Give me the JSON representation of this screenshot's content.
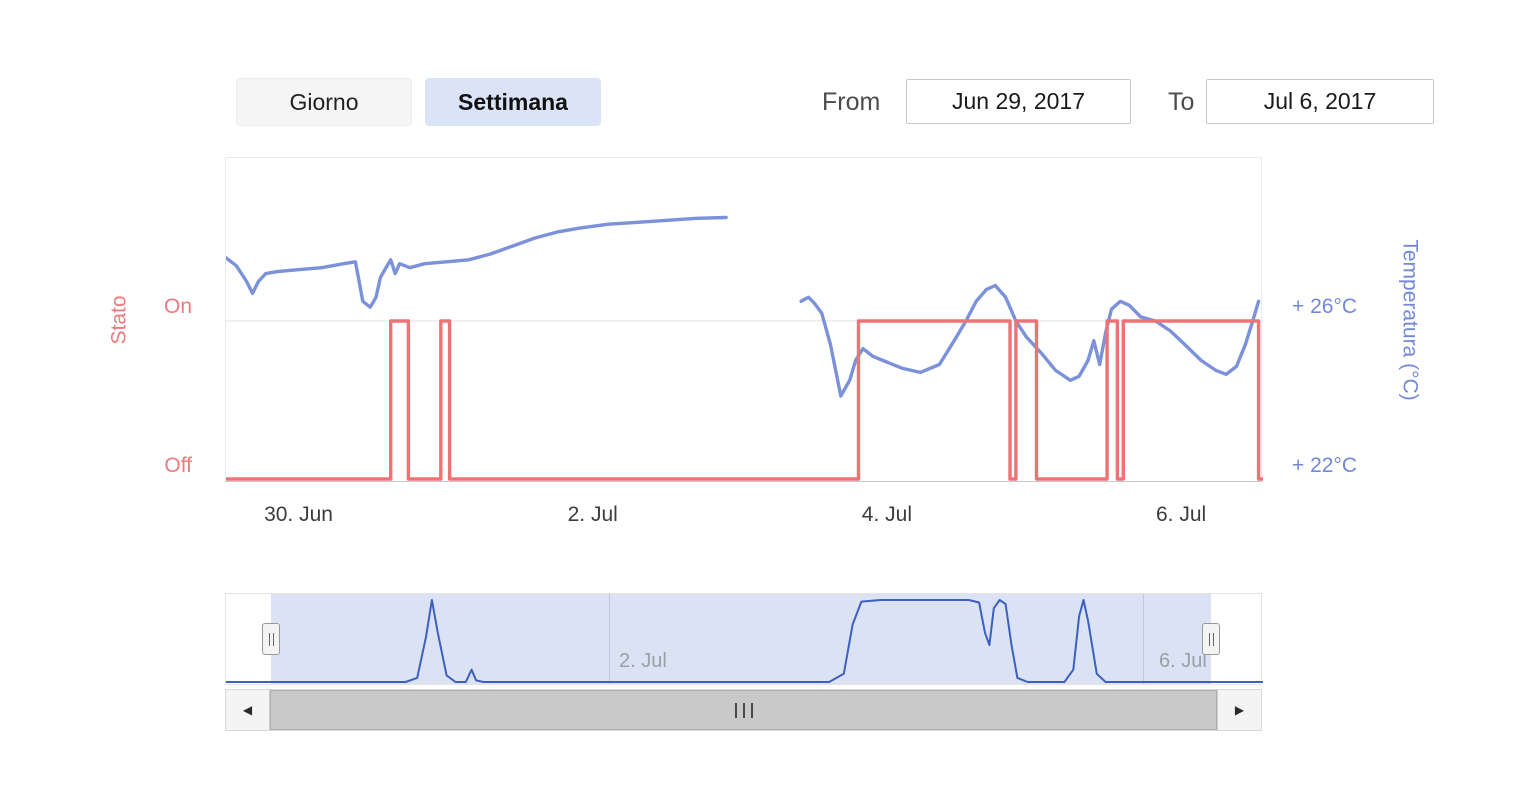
{
  "controls": {
    "view_buttons": [
      {
        "label": "Giorno",
        "active": false
      },
      {
        "label": "Settimana",
        "active": true
      }
    ],
    "from_label": "From",
    "from_value": "Jun 29, 2017",
    "to_label": "To",
    "to_value": "Jul 6, 2017"
  },
  "icons": {
    "scroll_left_icon": "◀",
    "scroll_right_icon": "▶"
  },
  "chart_data": {
    "type": "line",
    "title": "",
    "x_axis": {
      "unit": "days from window start (Jun 29, 2017 ~12:00)",
      "range": [
        0,
        7.05
      ],
      "ticks": [
        {
          "pos": 0.5,
          "label": "30. Jun"
        },
        {
          "pos": 2.5,
          "label": "2. Jul"
        },
        {
          "pos": 4.5,
          "label": "4. Jul"
        },
        {
          "pos": 6.5,
          "label": "6. Jul"
        }
      ]
    },
    "y_axis_left": {
      "title": "Stato",
      "color": "#ee7a7e",
      "tick_labels": [
        "On",
        "Off"
      ]
    },
    "y_axis_right": {
      "title": "Temperatura (°C)",
      "color": "#7488d8",
      "tick_labels": [
        "+ 26°C",
        "+ 22°C"
      ],
      "tick_values_c": [
        26,
        22
      ],
      "range_c": [
        21.9,
        30.1
      ]
    },
    "series": [
      {
        "name": "Temperatura",
        "unit": "°C",
        "color": "#7b91da",
        "segments": [
          [
            [
              0.0,
              27.6
            ],
            [
              0.07,
              27.4
            ],
            [
              0.14,
              27.0
            ],
            [
              0.18,
              26.7
            ],
            [
              0.22,
              27.0
            ],
            [
              0.27,
              27.2
            ],
            [
              0.35,
              27.25
            ],
            [
              0.5,
              27.3
            ],
            [
              0.65,
              27.35
            ],
            [
              0.8,
              27.45
            ],
            [
              0.88,
              27.5
            ],
            [
              0.9,
              27.1
            ],
            [
              0.93,
              26.5
            ],
            [
              0.98,
              26.35
            ],
            [
              1.02,
              26.6
            ],
            [
              1.05,
              27.1
            ],
            [
              1.08,
              27.3
            ],
            [
              1.12,
              27.55
            ],
            [
              1.15,
              27.2
            ],
            [
              1.18,
              27.45
            ],
            [
              1.25,
              27.35
            ],
            [
              1.35,
              27.45
            ],
            [
              1.5,
              27.5
            ],
            [
              1.65,
              27.55
            ],
            [
              1.8,
              27.7
            ],
            [
              1.95,
              27.9
            ],
            [
              2.1,
              28.1
            ],
            [
              2.25,
              28.25
            ],
            [
              2.4,
              28.35
            ],
            [
              2.6,
              28.45
            ],
            [
              2.8,
              28.5
            ],
            [
              3.0,
              28.55
            ],
            [
              3.2,
              28.6
            ],
            [
              3.4,
              28.62
            ]
          ],
          [
            [
              3.91,
              26.5
            ],
            [
              3.96,
              26.6
            ],
            [
              4.0,
              26.45
            ],
            [
              4.05,
              26.2
            ],
            [
              4.11,
              25.4
            ],
            [
              4.18,
              24.1
            ],
            [
              4.24,
              24.5
            ],
            [
              4.28,
              25.0
            ],
            [
              4.33,
              25.3
            ],
            [
              4.4,
              25.1
            ],
            [
              4.5,
              24.95
            ],
            [
              4.6,
              24.8
            ],
            [
              4.72,
              24.7
            ],
            [
              4.85,
              24.9
            ],
            [
              4.95,
              25.5
            ],
            [
              5.03,
              26.0
            ],
            [
              5.1,
              26.5
            ],
            [
              5.17,
              26.8
            ],
            [
              5.23,
              26.9
            ],
            [
              5.3,
              26.6
            ],
            [
              5.37,
              26.0
            ],
            [
              5.44,
              25.6
            ],
            [
              5.54,
              25.2
            ],
            [
              5.64,
              24.75
            ],
            [
              5.74,
              24.5
            ],
            [
              5.8,
              24.6
            ],
            [
              5.86,
              25.0
            ],
            [
              5.9,
              25.5
            ],
            [
              5.94,
              24.9
            ],
            [
              5.98,
              25.7
            ],
            [
              6.02,
              26.3
            ],
            [
              6.08,
              26.5
            ],
            [
              6.14,
              26.4
            ],
            [
              6.22,
              26.1
            ],
            [
              6.32,
              26.0
            ],
            [
              6.42,
              25.75
            ],
            [
              6.52,
              25.4
            ],
            [
              6.63,
              25.0
            ],
            [
              6.73,
              24.75
            ],
            [
              6.8,
              24.65
            ],
            [
              6.87,
              24.85
            ],
            [
              6.93,
              25.4
            ],
            [
              6.98,
              26.0
            ],
            [
              7.02,
              26.5
            ]
          ]
        ]
      },
      {
        "name": "Stato",
        "unit": "On/Off",
        "color": "#ef7376",
        "on_intervals": [
          [
            1.12,
            1.24
          ],
          [
            1.46,
            1.52
          ],
          [
            4.3,
            5.33
          ],
          [
            5.37,
            5.51
          ],
          [
            5.99,
            6.06
          ],
          [
            6.1,
            7.02
          ]
        ]
      }
    ],
    "navigator": {
      "color": "#3d5fc0",
      "labels": [
        "2. Jul",
        "6. Jul"
      ],
      "series": [
        [
          0,
          0
        ],
        [
          1.22,
          0
        ],
        [
          1.3,
          0.05
        ],
        [
          1.36,
          0.55
        ],
        [
          1.4,
          1.0
        ],
        [
          1.44,
          0.6
        ],
        [
          1.5,
          0.08
        ],
        [
          1.56,
          0
        ],
        [
          1.63,
          0
        ],
        [
          1.67,
          0.15
        ],
        [
          1.7,
          0.02
        ],
        [
          1.75,
          0
        ],
        [
          4.1,
          0
        ],
        [
          4.2,
          0.1
        ],
        [
          4.26,
          0.7
        ],
        [
          4.32,
          0.98
        ],
        [
          4.45,
          1.0
        ],
        [
          5.05,
          1.0
        ],
        [
          5.12,
          0.97
        ],
        [
          5.16,
          0.6
        ],
        [
          5.19,
          0.45
        ],
        [
          5.22,
          0.9
        ],
        [
          5.26,
          1.0
        ],
        [
          5.3,
          0.95
        ],
        [
          5.34,
          0.45
        ],
        [
          5.38,
          0.05
        ],
        [
          5.45,
          0
        ],
        [
          5.7,
          0
        ],
        [
          5.76,
          0.15
        ],
        [
          5.8,
          0.8
        ],
        [
          5.83,
          1.0
        ],
        [
          5.86,
          0.75
        ],
        [
          5.92,
          0.1
        ],
        [
          5.98,
          0
        ],
        [
          7.05,
          0
        ]
      ]
    }
  }
}
